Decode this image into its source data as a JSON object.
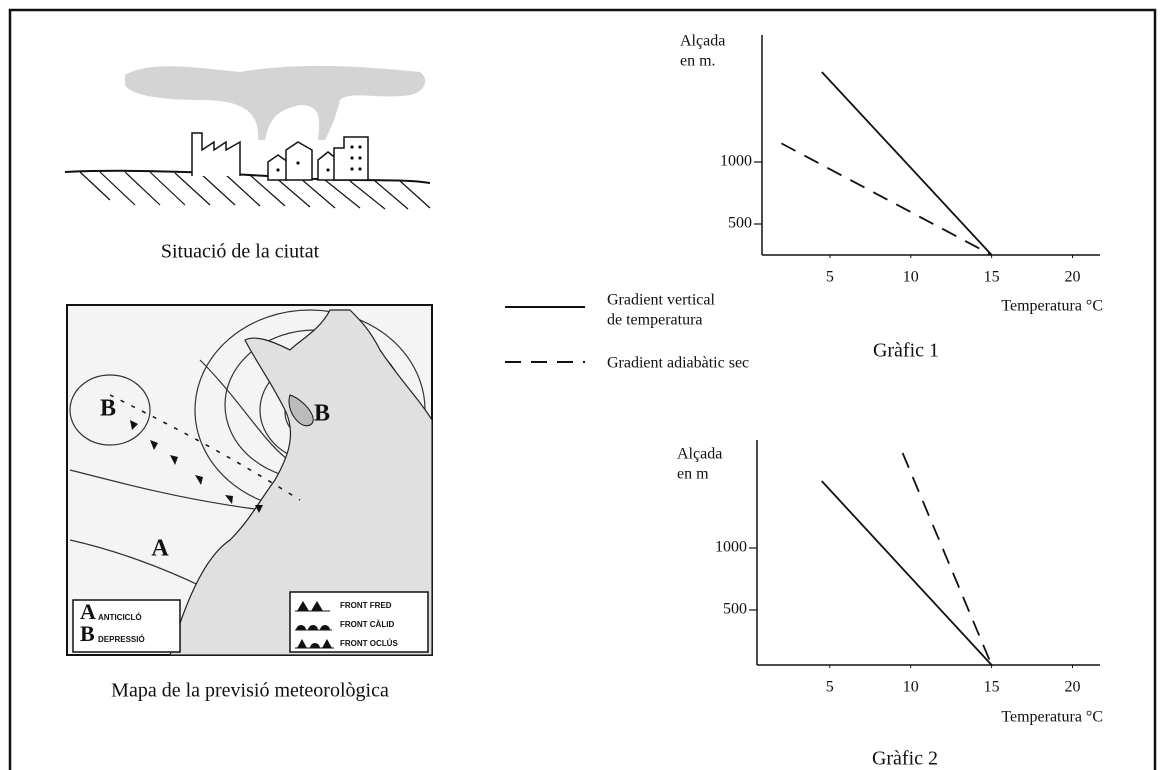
{
  "scene": {
    "caption": "Situació de la ciutat"
  },
  "map": {
    "caption": "Mapa de la previsió meteorològica",
    "labels": [
      "B",
      "B",
      "A"
    ],
    "pressure_legend": [
      {
        "symbol": "A",
        "label": "ANTICICLÓ"
      },
      {
        "symbol": "B",
        "label": "DEPRESSIÓ"
      }
    ],
    "front_legend": [
      "FRONT FRED",
      "FRONT CÀLID",
      "FRONT OCLÚS"
    ]
  },
  "legend": [
    {
      "lines": [
        "Gradient vertical",
        "de temperatura"
      ]
    },
    {
      "lines": [
        "Gradient adiabàtic sec"
      ]
    }
  ],
  "chart_data": [
    {
      "type": "line",
      "title": "Gràfic 1",
      "ylabel": [
        "Alçada",
        "en m."
      ],
      "xlabel": "Temperatura °C",
      "xlim": [
        0.8,
        21.7
      ],
      "ylim": [
        250,
        2024
      ],
      "xticks": [
        5,
        10,
        15,
        20
      ],
      "yticks": [
        500,
        1000
      ],
      "series": [
        {
          "dash": false,
          "color": "#111111",
          "x": [
            4.5,
            15
          ],
          "values": [
            1726,
            250
          ]
        },
        {
          "dash": true,
          "color": "#111111",
          "x": [
            2,
            15
          ],
          "values": [
            1150,
            250
          ]
        }
      ]
    },
    {
      "type": "line",
      "title": "Gràfic 2",
      "ylabel": [
        "Alçada",
        "en m"
      ],
      "xlabel": "Temperatura °C",
      "xlim": [
        0.5,
        21.7
      ],
      "ylim": [
        56,
        1871
      ],
      "xticks": [
        5,
        10,
        15,
        20
      ],
      "yticks": [
        500,
        1000
      ],
      "series": [
        {
          "dash": false,
          "color": "#111111",
          "x": [
            4.5,
            15
          ],
          "values": [
            1540,
            56
          ]
        },
        {
          "dash": true,
          "color": "#111111",
          "x": [
            9.5,
            15
          ],
          "values": [
            1766,
            56
          ]
        }
      ]
    }
  ]
}
